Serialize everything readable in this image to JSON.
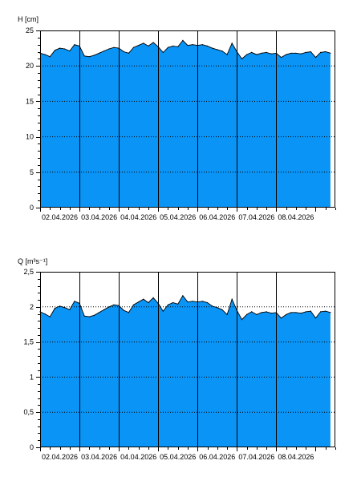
{
  "colors": {
    "fill": "#0a94f5",
    "stroke": "#000000",
    "grid": "#000000",
    "background": "#ffffff"
  },
  "chart_data": [
    {
      "type": "area",
      "ylabel": "H [cm]",
      "ylim": [
        0,
        25
      ],
      "yticks": [
        "0",
        "5",
        "10",
        "15",
        "20",
        "25"
      ],
      "ytick_values": [
        0,
        5,
        10,
        15,
        20,
        25
      ],
      "grid": "horizontal dotted at major y ticks; vertical solid at day boundaries",
      "xlim": [
        "2026-04-01T00:00",
        "2026-04-08T12:00"
      ],
      "data_end": "2026-04-08T09:00",
      "day_boundaries": [
        "2026-04-02T00:00",
        "2026-04-03T00:00",
        "2026-04-04T00:00",
        "2026-04-05T00:00",
        "2026-04-06T00:00",
        "2026-04-07T00:00"
      ],
      "xtick_labels": [
        "02.04.2026",
        "03.04.2026",
        "04.04.2026",
        "05.04.2026",
        "06.04.2026",
        "07.04.2026",
        "08.04.2026"
      ],
      "x": [
        "2026-04-01T00:00",
        "2026-04-01T03:00",
        "2026-04-01T06:00",
        "2026-04-01T09:00",
        "2026-04-01T12:00",
        "2026-04-01T15:00",
        "2026-04-01T18:00",
        "2026-04-01T21:00",
        "2026-04-02T00:00",
        "2026-04-02T03:00",
        "2026-04-02T06:00",
        "2026-04-02T09:00",
        "2026-04-02T12:00",
        "2026-04-02T15:00",
        "2026-04-02T18:00",
        "2026-04-02T21:00",
        "2026-04-03T00:00",
        "2026-04-03T03:00",
        "2026-04-03T06:00",
        "2026-04-03T09:00",
        "2026-04-03T12:00",
        "2026-04-03T15:00",
        "2026-04-03T18:00",
        "2026-04-03T21:00",
        "2026-04-04T00:00",
        "2026-04-04T03:00",
        "2026-04-04T06:00",
        "2026-04-04T09:00",
        "2026-04-04T12:00",
        "2026-04-04T15:00",
        "2026-04-04T18:00",
        "2026-04-04T21:00",
        "2026-04-05T00:00",
        "2026-04-05T03:00",
        "2026-04-05T06:00",
        "2026-04-05T09:00",
        "2026-04-05T12:00",
        "2026-04-05T15:00",
        "2026-04-05T18:00",
        "2026-04-05T21:00",
        "2026-04-06T00:00",
        "2026-04-06T03:00",
        "2026-04-06T06:00",
        "2026-04-06T09:00",
        "2026-04-06T12:00",
        "2026-04-06T15:00",
        "2026-04-06T18:00",
        "2026-04-06T21:00",
        "2026-04-07T00:00",
        "2026-04-07T03:00",
        "2026-04-07T06:00",
        "2026-04-07T09:00",
        "2026-04-07T12:00",
        "2026-04-07T15:00",
        "2026-04-07T18:00",
        "2026-04-07T21:00",
        "2026-04-08T00:00",
        "2026-04-08T03:00",
        "2026-04-08T06:00",
        "2026-04-08T09:00"
      ],
      "values": [
        21.8,
        21.6,
        21.3,
        22.2,
        22.5,
        22.4,
        22.1,
        23.0,
        22.8,
        21.4,
        21.3,
        21.5,
        21.8,
        22.1,
        22.4,
        22.6,
        22.5,
        22.0,
        21.8,
        22.6,
        22.9,
        23.2,
        22.8,
        23.3,
        22.7,
        21.9,
        22.6,
        22.8,
        22.7,
        23.6,
        22.9,
        23.0,
        22.9,
        23.0,
        22.8,
        22.5,
        22.3,
        22.1,
        21.6,
        23.2,
        22.0,
        21.0,
        21.6,
        21.9,
        21.6,
        21.8,
        21.9,
        21.7,
        21.8,
        21.2,
        21.6,
        21.8,
        21.8,
        21.7,
        21.9,
        22.0,
        21.2,
        21.9,
        22.0,
        21.8
      ]
    },
    {
      "type": "area",
      "ylabel": "Q [m³s⁻¹]",
      "ylim": [
        0,
        2.5
      ],
      "yticks": [
        "0",
        "0,5",
        "1",
        "1,5",
        "2",
        "2,5"
      ],
      "ytick_values": [
        0,
        0.5,
        1,
        1.5,
        2,
        2.5
      ],
      "grid": "horizontal dotted at major y ticks; vertical solid at day boundaries",
      "xlim": [
        "2026-04-01T00:00",
        "2026-04-08T12:00"
      ],
      "data_end": "2026-04-08T09:00",
      "day_boundaries": [
        "2026-04-02T00:00",
        "2026-04-03T00:00",
        "2026-04-04T00:00",
        "2026-04-05T00:00",
        "2026-04-06T00:00",
        "2026-04-07T00:00"
      ],
      "xtick_labels": [
        "02.04.2026",
        "03.04.2026",
        "04.04.2026",
        "05.04.2026",
        "06.04.2026",
        "07.04.2026",
        "08.04.2026"
      ],
      "x": [
        "2026-04-01T00:00",
        "2026-04-01T03:00",
        "2026-04-01T06:00",
        "2026-04-01T09:00",
        "2026-04-01T12:00",
        "2026-04-01T15:00",
        "2026-04-01T18:00",
        "2026-04-01T21:00",
        "2026-04-02T00:00",
        "2026-04-02T03:00",
        "2026-04-02T06:00",
        "2026-04-02T09:00",
        "2026-04-02T12:00",
        "2026-04-02T15:00",
        "2026-04-02T18:00",
        "2026-04-02T21:00",
        "2026-04-03T00:00",
        "2026-04-03T03:00",
        "2026-04-03T06:00",
        "2026-04-03T09:00",
        "2026-04-03T12:00",
        "2026-04-03T15:00",
        "2026-04-03T18:00",
        "2026-04-03T21:00",
        "2026-04-04T00:00",
        "2026-04-04T03:00",
        "2026-04-04T06:00",
        "2026-04-04T09:00",
        "2026-04-04T12:00",
        "2026-04-04T15:00",
        "2026-04-04T18:00",
        "2026-04-04T21:00",
        "2026-04-05T00:00",
        "2026-04-05T03:00",
        "2026-04-05T06:00",
        "2026-04-05T09:00",
        "2026-04-05T12:00",
        "2026-04-05T15:00",
        "2026-04-05T18:00",
        "2026-04-05T21:00",
        "2026-04-06T00:00",
        "2026-04-06T03:00",
        "2026-04-06T06:00",
        "2026-04-06T09:00",
        "2026-04-06T12:00",
        "2026-04-06T15:00",
        "2026-04-06T18:00",
        "2026-04-06T21:00",
        "2026-04-07T00:00",
        "2026-04-07T03:00",
        "2026-04-07T06:00",
        "2026-04-07T09:00",
        "2026-04-07T12:00",
        "2026-04-07T15:00",
        "2026-04-07T18:00",
        "2026-04-07T21:00",
        "2026-04-08T00:00",
        "2026-04-08T03:00",
        "2026-04-08T06:00",
        "2026-04-08T09:00"
      ],
      "values": [
        1.93,
        1.9,
        1.86,
        1.98,
        2.01,
        1.99,
        1.96,
        2.08,
        2.05,
        1.87,
        1.86,
        1.88,
        1.92,
        1.96,
        2.0,
        2.03,
        2.02,
        1.95,
        1.92,
        2.03,
        2.07,
        2.11,
        2.06,
        2.13,
        2.05,
        1.94,
        2.03,
        2.06,
        2.04,
        2.16,
        2.07,
        2.08,
        2.07,
        2.08,
        2.06,
        2.01,
        1.99,
        1.96,
        1.89,
        2.11,
        1.95,
        1.82,
        1.89,
        1.93,
        1.89,
        1.92,
        1.93,
        1.91,
        1.92,
        1.84,
        1.89,
        1.92,
        1.92,
        1.91,
        1.93,
        1.94,
        1.84,
        1.93,
        1.94,
        1.92
      ]
    }
  ]
}
